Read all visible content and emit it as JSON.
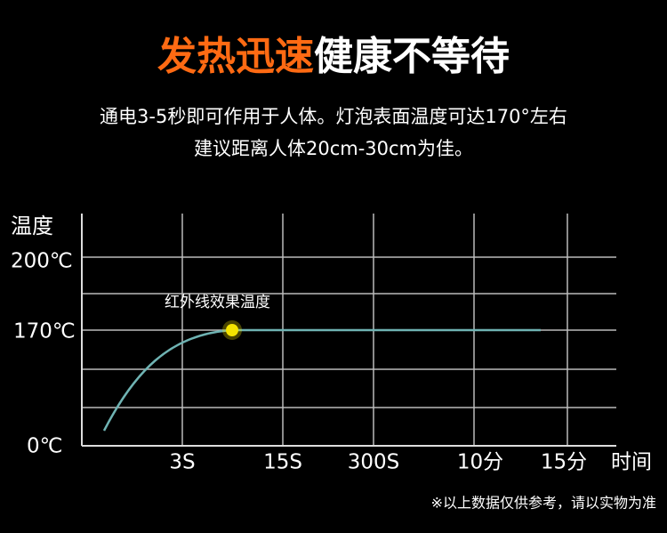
{
  "header": {
    "title_highlight": "发热迅速",
    "title_rest": "健康不等待",
    "subtitle": [
      "通电3-5秒即可作用于人体。灯泡表面温度可达170°左右",
      "建议距离人体20cm-30cm为佳。"
    ]
  },
  "diagram": {
    "y_axis_label": "温度",
    "y_labels": [
      "200℃",
      "170℃",
      "0℃"
    ],
    "annotation": "红外线效果温度",
    "x_labels": [
      "3S",
      "15S",
      "300S",
      "10分",
      "15分"
    ],
    "x_axis_label": "时间"
  },
  "footnote": "※以上数据仅供参考，请以实物为准"
}
